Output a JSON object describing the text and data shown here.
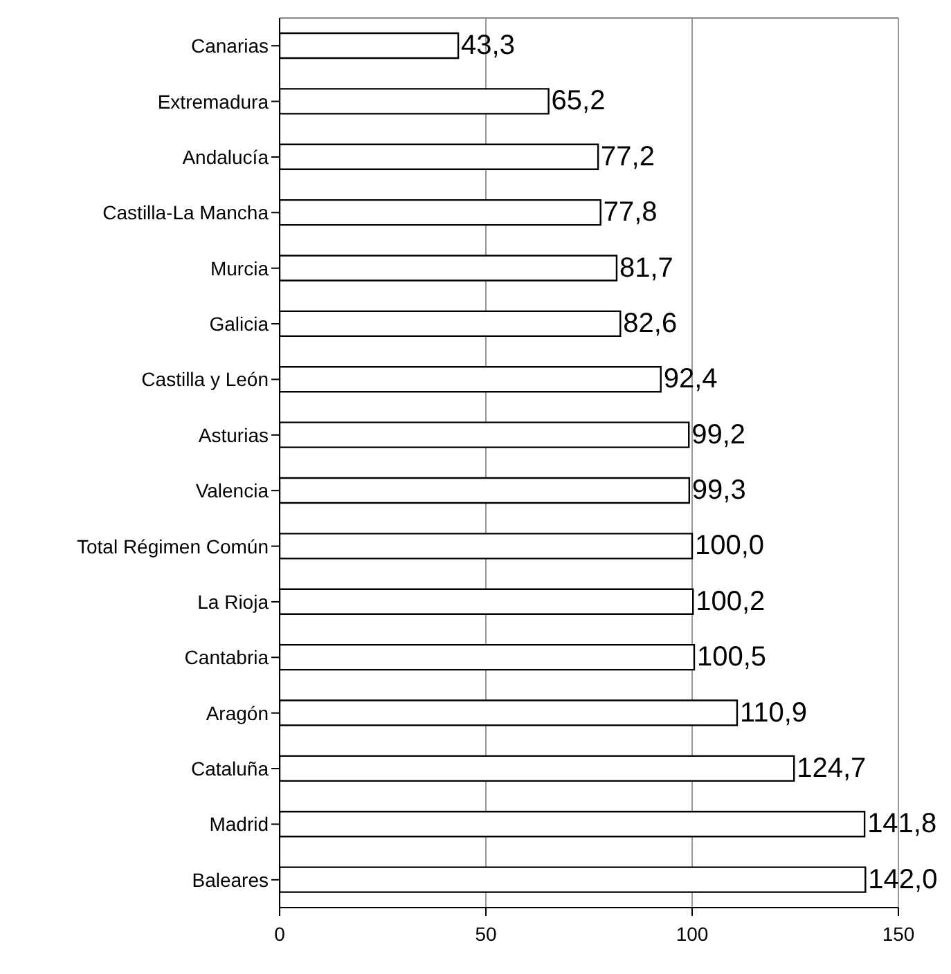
{
  "chart_data": {
    "type": "bar",
    "orientation": "horizontal",
    "categories": [
      "Canarias",
      "Extremadura",
      "Andalucía",
      "Castilla-La Mancha",
      "Murcia",
      "Galicia",
      "Castilla y León",
      "Asturias",
      "Valencia",
      "Total Régimen Común",
      "La Rioja",
      "Cantabria",
      "Aragón",
      "Cataluña",
      "Madrid",
      "Baleares"
    ],
    "values": [
      43.3,
      65.2,
      77.2,
      77.8,
      81.7,
      82.6,
      92.4,
      99.2,
      99.3,
      100.0,
      100.2,
      100.5,
      110.9,
      124.7,
      141.8,
      142.0
    ],
    "value_labels": [
      "43,3",
      "65,2",
      "77,2",
      "77,8",
      "81,7",
      "82,6",
      "92,4",
      "99,2",
      "99,3",
      "100,0",
      "100,2",
      "100,5",
      "110,9",
      "124,7",
      "141,8",
      "142,0"
    ],
    "color": "#ffffff",
    "xlim": [
      0,
      150
    ],
    "xticks": [
      0,
      50,
      100,
      150
    ],
    "grid": "x"
  }
}
